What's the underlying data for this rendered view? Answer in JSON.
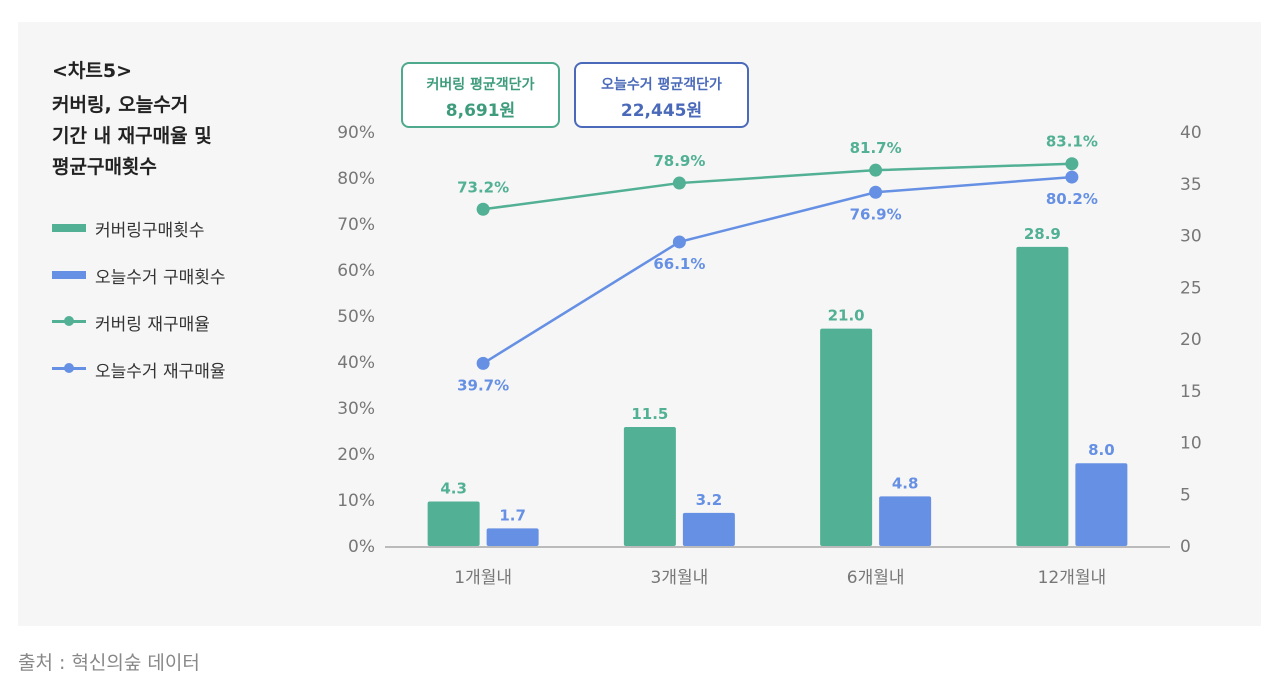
{
  "chart_label": "<차트5>",
  "title": "커버링, 오늘수거\n기간 내 재구매율 및\n평균구매횟수",
  "legend": [
    {
      "label": "커버링구매횟수",
      "kind": "bar",
      "color": "#52b094"
    },
    {
      "label": "오늘수거 구매횟수",
      "kind": "bar",
      "color": "#6690e4"
    },
    {
      "label": "커버링 재구매율",
      "kind": "line",
      "color": "#52b094"
    },
    {
      "label": "오늘수거 재구매율",
      "kind": "line",
      "color": "#6690e4"
    }
  ],
  "info_boxes": {
    "covering": {
      "label": "커버링 평균객단가",
      "value": "8,691원"
    },
    "today": {
      "label": "오늘수거 평균객단가",
      "value": "22,445원"
    }
  },
  "source": "출처 : 혁신의숲 데이터",
  "chart_data": {
    "type": "bar+line",
    "categories": [
      "1개월내",
      "3개월내",
      "6개월내",
      "12개월내"
    ],
    "y_left": {
      "ticks": [
        "0%",
        "10%",
        "20%",
        "30%",
        "40%",
        "50%",
        "60%",
        "70%",
        "80%",
        "90%"
      ],
      "range": [
        0,
        90
      ]
    },
    "y_right": {
      "ticks": [
        "0",
        "5",
        "10",
        "15",
        "20",
        "25",
        "30",
        "35",
        "40"
      ],
      "range": [
        0,
        40
      ]
    },
    "bar_series": [
      {
        "name": "커버링구매횟수",
        "color": "#52b094",
        "values": [
          4.3,
          11.5,
          21.0,
          28.9
        ],
        "labels": [
          "4.3",
          "11.5",
          "21.0",
          "28.9"
        ]
      },
      {
        "name": "오늘수거 구매횟수",
        "color": "#6690e4",
        "values": [
          1.7,
          3.2,
          4.8,
          8.0
        ],
        "labels": [
          "1.7",
          "3.2",
          "4.8",
          "8.0"
        ]
      }
    ],
    "line_series": [
      {
        "name": "커버링 재구매율",
        "color": "#52b094",
        "values": [
          73.2,
          78.9,
          81.7,
          83.1
        ],
        "labels": [
          "73.2%",
          "78.9%",
          "81.7%",
          "83.1%"
        ]
      },
      {
        "name": "오늘수거 재구매율",
        "color": "#6690e4",
        "values": [
          39.7,
          66.1,
          76.9,
          80.2
        ],
        "labels": [
          "39.7%",
          "66.1%",
          "76.9%",
          "80.2%"
        ]
      }
    ]
  }
}
